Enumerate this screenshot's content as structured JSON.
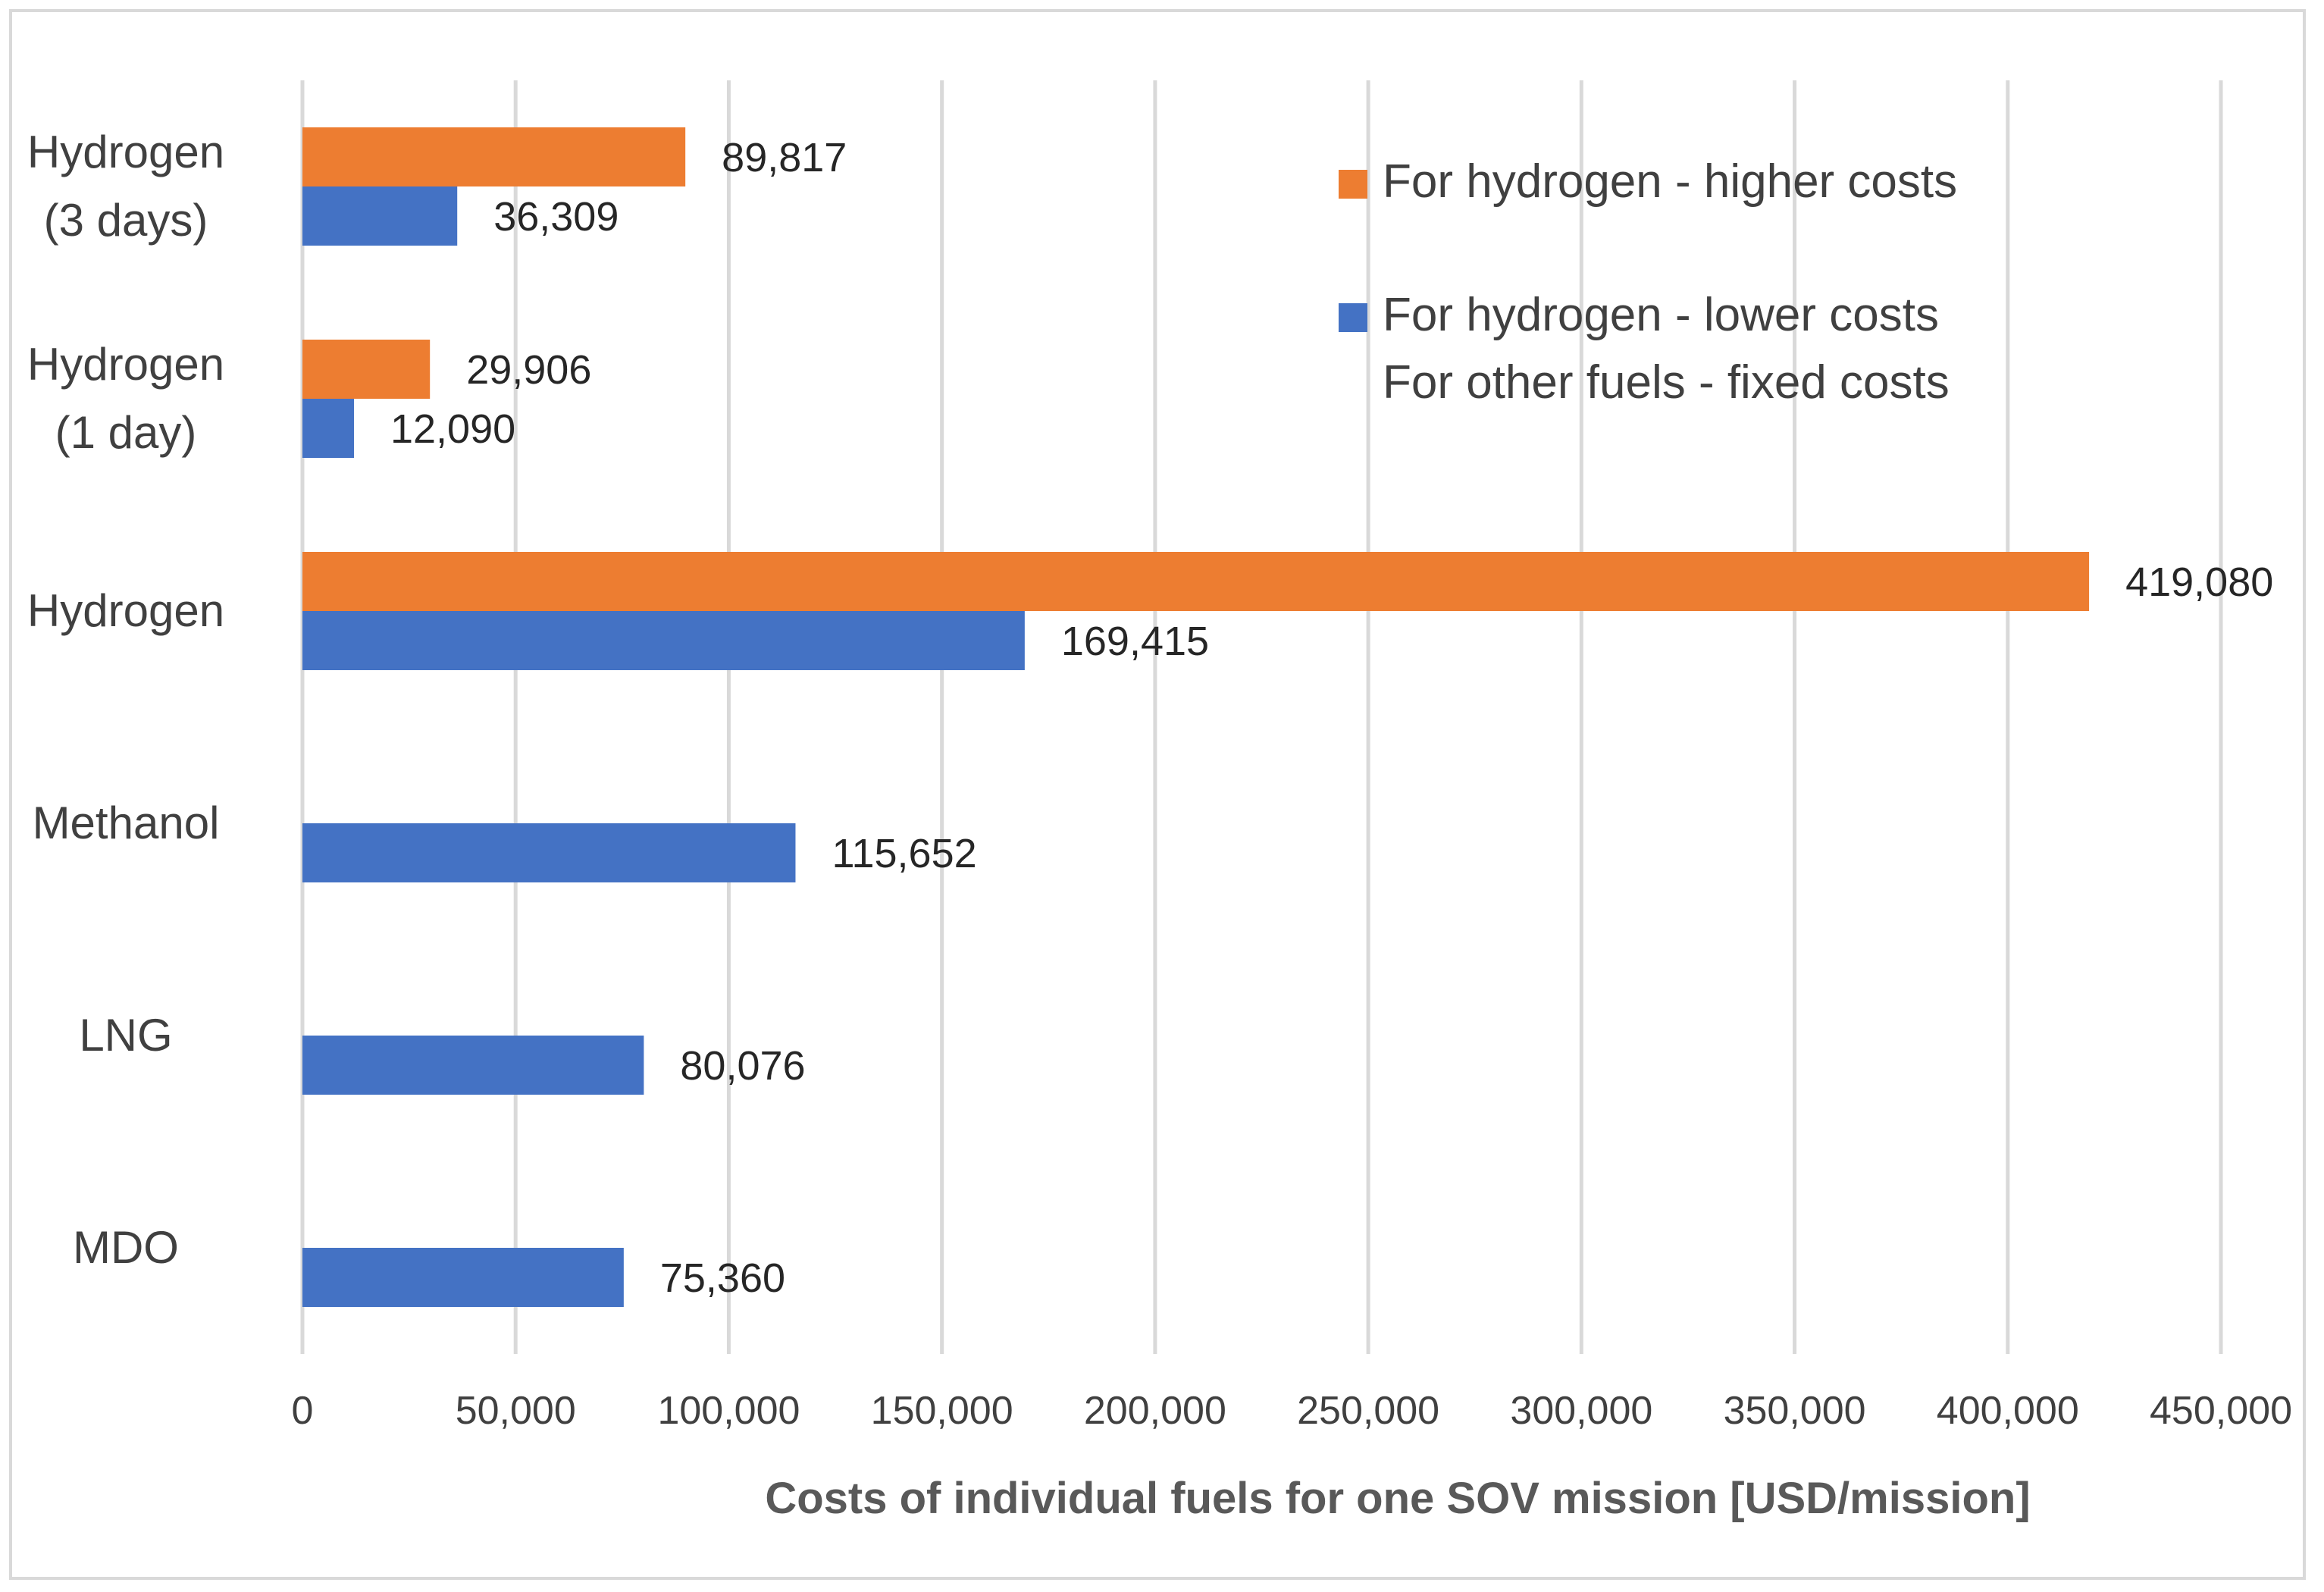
{
  "chart_data": {
    "type": "bar",
    "orientation": "horizontal",
    "title": "",
    "xlabel": "Costs of individual fuels for one SOV mission [USD/mission]",
    "ylabel": "",
    "xlim": [
      0,
      450000
    ],
    "x_ticks": [
      0,
      50000,
      100000,
      150000,
      200000,
      250000,
      300000,
      350000,
      400000,
      450000
    ],
    "x_tick_labels": [
      "0",
      "50,000",
      "100,000",
      "150,000",
      "200,000",
      "250,000",
      "300,000",
      "350,000",
      "400,000",
      "450,000"
    ],
    "grid": true,
    "legend_position": "top-right",
    "categories": [
      [
        "Hydrogen",
        "(3 days)"
      ],
      [
        "Hydrogen",
        "(1 day)"
      ],
      [
        "Hydrogen"
      ],
      [
        "Methanol"
      ],
      [
        "LNG"
      ],
      [
        "MDO"
      ]
    ],
    "series": [
      {
        "name": "For hydrogen - higher costs",
        "color": "#ed7d31",
        "values": [
          89817,
          29906,
          419080,
          null,
          null,
          null
        ],
        "labels": [
          "89,817",
          "29,906",
          "419,080",
          "",
          "",
          ""
        ]
      },
      {
        "name": "For hydrogen - lower costs",
        "name_line2": "For other fuels - fixed costs",
        "color": "#4472c4",
        "values": [
          36309,
          12090,
          169415,
          115652,
          80076,
          75360
        ],
        "labels": [
          "36,309",
          "12,090",
          "169,415",
          "115,652",
          "80,076",
          "75,360"
        ]
      }
    ]
  }
}
